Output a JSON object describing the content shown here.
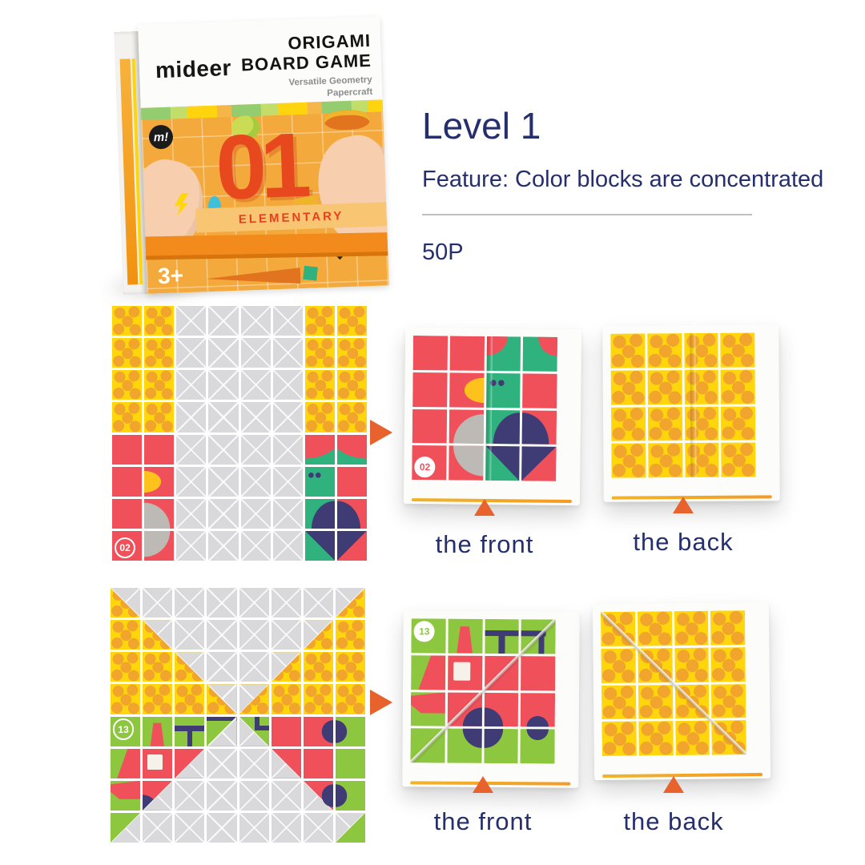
{
  "page": {
    "background": "#ffffff"
  },
  "box": {
    "brand": "mideer",
    "title_line1": "ORIGAMI",
    "title_line2": "BOARD GAME",
    "subtitle_line1": "Versatile Geometry",
    "subtitle_line2": "Papercraft",
    "logo_monogram": "m!",
    "big_number": "01",
    "level_band": "ELEMENTARY",
    "age_badge": "3+"
  },
  "info": {
    "title": "Level 1",
    "feature": "Feature: Color blocks are concentrated",
    "pieces": "50P"
  },
  "sections": [
    {
      "id": "example-02-bird",
      "front_label": "the front",
      "back_label": "the back",
      "sheet": {
        "badge": "02",
        "badge_cell": "R",
        "badge_style": "ring",
        "badge_pos": "bl",
        "crease": null,
        "rows": [
          [
            "Y",
            "Y",
            "G",
            "G",
            "G",
            "G",
            "Y",
            "Y"
          ],
          [
            "Y",
            "Y",
            "G",
            "G",
            "G",
            "G",
            "Y",
            "Y"
          ],
          [
            "Y",
            "Y",
            "G",
            "G",
            "G",
            "G",
            "Y",
            "Y"
          ],
          [
            "Y",
            "Y",
            "G",
            "G",
            "G",
            "G",
            "Y",
            "Y"
          ],
          [
            "R",
            "R",
            "G",
            "G",
            "G",
            "G",
            "headL",
            "headR"
          ],
          [
            "R",
            "beakL",
            "G",
            "G",
            "G",
            "G",
            "eyes",
            "R"
          ],
          [
            "R",
            "discBL",
            "G",
            "G",
            "G",
            "G",
            "balTL",
            "balTR"
          ],
          [
            "badgeRing",
            "discTL",
            "G",
            "G",
            "G",
            "G",
            "balBL",
            "balBR"
          ]
        ]
      },
      "front": {
        "badge": "02",
        "badge_cell": "R",
        "badge_style": "solid",
        "badge_pos": "bl",
        "crease": "v",
        "crease_x": "51%",
        "rows": [
          [
            "R",
            "R",
            "fheadL",
            "fheadR"
          ],
          [
            "R",
            "beakR",
            "eyes",
            "R"
          ],
          [
            "R",
            "fdiscBR",
            "balTL",
            "balTR"
          ],
          [
            "badgeSolid",
            "fdiscTR",
            "balBL",
            "balBR"
          ]
        ]
      },
      "back": {
        "crease": "v",
        "crease_x": "55%",
        "rows": [
          [
            "Y",
            "Y",
            "Y",
            "Y"
          ],
          [
            "Y",
            "Y",
            "Y",
            "Y"
          ],
          [
            "Y",
            "Y",
            "Y",
            "Y"
          ],
          [
            "Y",
            "Y",
            "Y",
            "Y"
          ]
        ]
      }
    },
    {
      "id": "example-13-fire-truck",
      "front_label": "the front",
      "back_label": "the back",
      "sheet": {
        "badge": "13",
        "badge_cell": "L",
        "badge_style": "ring",
        "badge_pos": "tl",
        "crease": null,
        "rows": [
          [
            "Ybl",
            "G",
            "G",
            "G",
            "G",
            "G",
            "G",
            "Ybr"
          ],
          [
            "Y",
            "Ybl",
            "G",
            "G",
            "G",
            "G",
            "Ybr",
            "Y"
          ],
          [
            "Y",
            "Y",
            "Ybl",
            "G",
            "G",
            "Ybr",
            "Y",
            "Y"
          ],
          [
            "Y",
            "Y",
            "Y",
            "Ybl",
            "Ybr",
            "Y",
            "Y",
            "Y"
          ],
          [
            "badgeRing",
            "funnel",
            "ladderT",
            "ladderDL",
            "ladderDR",
            "R",
            "RwheelR",
            "grWheelL"
          ],
          [
            "cabL",
            "window",
            "RdiagBR",
            "G",
            "G",
            "RdiagBL",
            "R",
            "L"
          ],
          [
            "bumper",
            "wheelDiag",
            "G",
            "G",
            "G",
            "G",
            "grayRedWheel",
            "grWheelL"
          ],
          [
            "GdiagTL",
            "G",
            "G",
            "G",
            "G",
            "G",
            "G",
            "GdiagBR"
          ]
        ]
      },
      "front": {
        "badge": "13",
        "badge_cell": "L",
        "badge_style": "solid",
        "badge_pos": "tl",
        "crease": "d_trbl",
        "rows": [
          [
            "badgeSolid",
            "funnel",
            "ladderA",
            "ladderB"
          ],
          [
            "cabL",
            "window",
            "R",
            "R"
          ],
          [
            "bumper",
            "wheelBR",
            "wheelBL",
            "wheelBhalf"
          ],
          [
            "L",
            "gwheelTR",
            "gwheelTL",
            "gwheelThalf"
          ]
        ]
      },
      "back": {
        "crease": "d_tlbr",
        "rows": [
          [
            "Y",
            "Y",
            "Y",
            "Y"
          ],
          [
            "Y",
            "Y",
            "Y",
            "Y"
          ],
          [
            "Y",
            "Y",
            "Y",
            "Y"
          ],
          [
            "Y",
            "Y",
            "Y",
            "Y"
          ]
        ]
      }
    }
  ],
  "colors": {
    "yellow": "#ffd60b",
    "dot": "#f2a52d",
    "gray": "#d9d9dc",
    "red": "#f0505a",
    "emerald": "#2fb27d",
    "lime": "#8dc63f",
    "navy": "#3f3b74",
    "beak": "#ffc21c",
    "disc": "#bdb9b4",
    "orange": "#e8622d",
    "text": "#252f6d",
    "strap": "#f28a1c",
    "cover": "#f3a93c",
    "num": "#e8481e",
    "band": "#f8c573",
    "band_text": "#e8401f"
  }
}
